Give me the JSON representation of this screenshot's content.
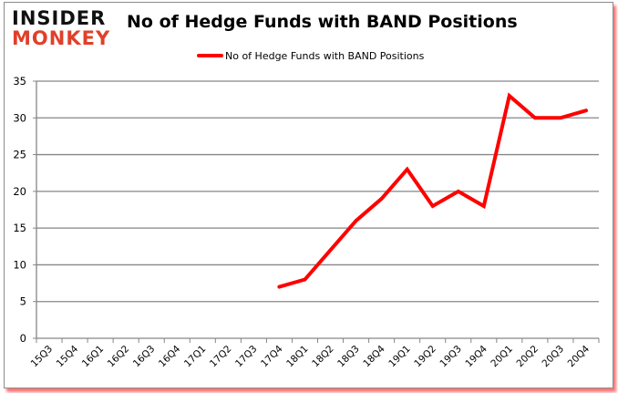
{
  "logo": {
    "line1": "INSIDER",
    "line2": "MONKEY"
  },
  "title": "No of Hedge Funds with BAND Positions",
  "legend": {
    "label": "No of Hedge Funds with BAND Positions",
    "color": "#ff0000"
  },
  "colors": {
    "line": "#ff0000",
    "grid": "#868686",
    "axis": "#868686",
    "shadow": "#ff0000",
    "logo_dark": "#111111",
    "logo_red": "#e0402a"
  },
  "chart_data": {
    "type": "line",
    "title": "No of Hedge Funds with BAND Positions",
    "xlabel": "",
    "ylabel": "",
    "ylim": [
      0,
      35
    ],
    "yticks": [
      0,
      5,
      10,
      15,
      20,
      25,
      30,
      35
    ],
    "grid": true,
    "legend_position": "top",
    "categories": [
      "15Q3",
      "15Q4",
      "16Q1",
      "16Q2",
      "16Q3",
      "16Q4",
      "17Q1",
      "17Q2",
      "17Q3",
      "17Q4",
      "18Q1",
      "18Q2",
      "18Q3",
      "18Q4",
      "19Q1",
      "19Q2",
      "19Q3",
      "19Q4",
      "20Q1",
      "20Q2",
      "20Q3",
      "20Q4"
    ],
    "series": [
      {
        "name": "No of Hedge Funds with BAND Positions",
        "color": "#ff0000",
        "values": [
          null,
          null,
          null,
          null,
          null,
          null,
          null,
          null,
          null,
          7,
          8,
          12,
          16,
          19,
          23,
          18,
          20,
          18,
          33,
          30,
          30,
          31
        ]
      }
    ]
  }
}
